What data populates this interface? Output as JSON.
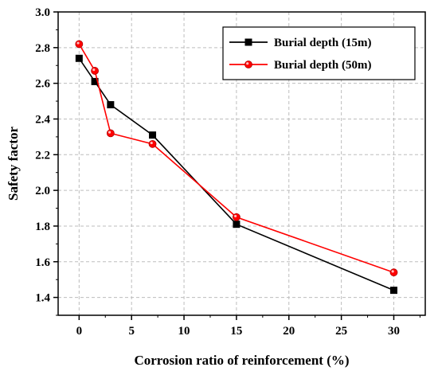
{
  "chart_data": {
    "type": "line",
    "xlabel": "Corrosion ratio of reinforcement (%)",
    "ylabel": "Safety factor",
    "xlim": [
      -2,
      33
    ],
    "ylim": [
      1.3,
      3.0
    ],
    "xticks": [
      0,
      5,
      10,
      15,
      20,
      25,
      30
    ],
    "yticks": [
      1.4,
      1.6,
      1.8,
      2.0,
      2.2,
      2.4,
      2.6,
      2.8,
      3.0
    ],
    "grid": true,
    "legend_position": "top-right",
    "series": [
      {
        "name": "Burial depth (15m)",
        "color": "#000000",
        "marker": "square",
        "x": [
          0,
          1.5,
          3,
          7,
          15,
          30
        ],
        "y": [
          2.74,
          2.61,
          2.48,
          2.31,
          1.81,
          1.44
        ]
      },
      {
        "name": "Burial depth (50m)",
        "color": "#ff0000",
        "marker": "circle",
        "x": [
          0,
          1.5,
          3,
          7,
          15,
          30
        ],
        "y": [
          2.82,
          2.67,
          2.32,
          2.26,
          1.85,
          1.54
        ]
      }
    ]
  }
}
